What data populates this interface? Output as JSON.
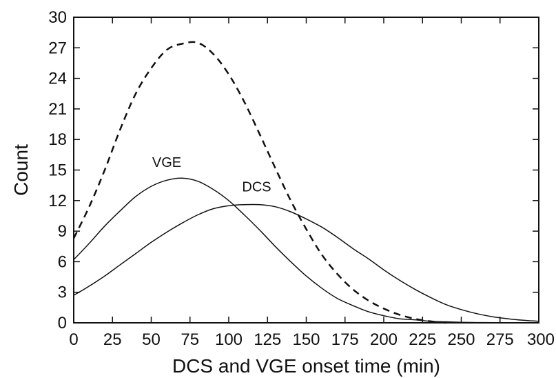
{
  "chart_data": {
    "type": "line",
    "xlabel": "DCS and VGE onset time (min)",
    "ylabel": "Count",
    "xlim": [
      0,
      300
    ],
    "ylim": [
      0,
      30
    ],
    "x_ticks": [
      0,
      25,
      50,
      75,
      100,
      125,
      150,
      175,
      200,
      225,
      250,
      275,
      300
    ],
    "y_ticks": [
      0,
      3,
      6,
      9,
      12,
      15,
      18,
      21,
      24,
      27,
      30
    ],
    "x": [
      0,
      10,
      20,
      30,
      40,
      50,
      60,
      70,
      80,
      90,
      100,
      110,
      120,
      130,
      140,
      150,
      160,
      170,
      180,
      190,
      200,
      210,
      220,
      230,
      240,
      250,
      260,
      270,
      280,
      290,
      300
    ],
    "series": [
      {
        "name": "VGE",
        "style": "solid",
        "color": "#111111",
        "values": [
          6.2,
          7.8,
          9.5,
          11.0,
          12.4,
          13.4,
          14.0,
          14.2,
          13.9,
          13.1,
          12.0,
          10.6,
          9.1,
          7.5,
          6.0,
          4.6,
          3.4,
          2.4,
          1.7,
          1.1,
          0.7,
          0.4,
          0.3,
          0.15,
          0.1,
          0.05,
          0.03,
          0.02,
          0.01,
          0.01,
          0.0
        ]
      },
      {
        "name": "DCS",
        "style": "solid",
        "color": "#111111",
        "values": [
          2.7,
          3.6,
          4.6,
          5.7,
          6.8,
          7.9,
          8.9,
          9.8,
          10.6,
          11.2,
          11.5,
          11.6,
          11.6,
          11.4,
          10.9,
          10.2,
          9.4,
          8.4,
          7.3,
          6.3,
          5.2,
          4.2,
          3.3,
          2.5,
          1.8,
          1.3,
          0.9,
          0.6,
          0.4,
          0.25,
          0.15
        ]
      },
      {
        "name": "",
        "style": "dashed",
        "color": "#111111",
        "values": [
          8.3,
          11.4,
          15.0,
          19.0,
          22.5,
          25.0,
          26.8,
          27.4,
          27.5,
          26.4,
          24.4,
          21.7,
          18.5,
          15.2,
          12.0,
          9.2,
          6.7,
          4.8,
          3.3,
          2.2,
          1.4,
          0.8,
          0.4,
          0.15,
          0.0,
          0.0,
          0.0,
          0.0,
          0.0,
          0.0,
          0.0
        ]
      }
    ],
    "annotations": [
      {
        "text": "VGE",
        "x": 60,
        "y": 15.3
      },
      {
        "text": "DCS",
        "x": 118,
        "y": 12.9
      }
    ]
  }
}
